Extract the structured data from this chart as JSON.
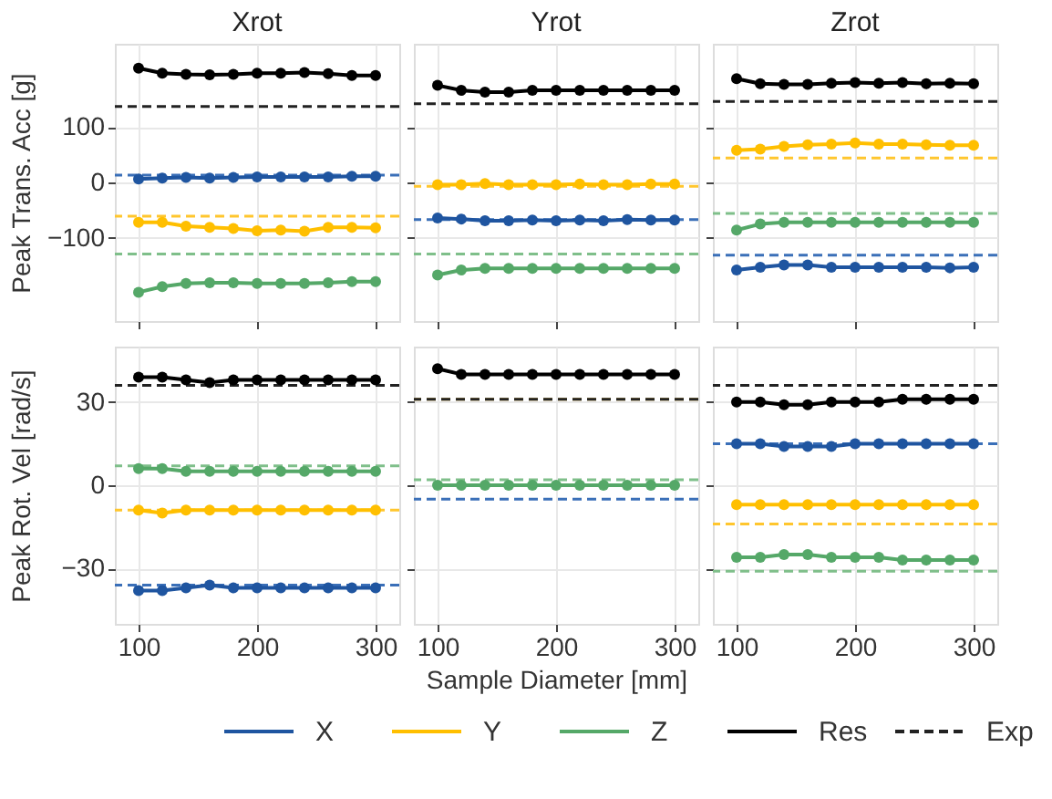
{
  "chart_data": [
    {
      "type": "line",
      "title": "Xrot",
      "ylabel": "Peak Trans. Acc [g]",
      "x": [
        100,
        120,
        140,
        160,
        180,
        200,
        220,
        240,
        260,
        280,
        300
      ],
      "xlim": [
        80,
        320
      ],
      "xticks": [
        100,
        200,
        300
      ],
      "ylim": [
        -250,
        250
      ],
      "yticks": [
        -100,
        0,
        100
      ],
      "grid": true,
      "marker": "circle",
      "line_style": "solid",
      "tick_labels": "y",
      "legend": "bottom",
      "series": [
        {
          "name": "X",
          "color": "#1f55a0",
          "values": [
            6,
            8,
            9,
            8,
            9,
            10,
            10,
            10,
            10,
            11,
            11
          ]
        },
        {
          "name": "Y",
          "color": "#ffbf00",
          "values": [
            -72,
            -72,
            -79,
            -81,
            -83,
            -87,
            -86,
            -88,
            -81,
            -81,
            -82
          ]
        },
        {
          "name": "Z",
          "color": "#55a868",
          "values": [
            -198,
            -188,
            -182,
            -181,
            -181,
            -182,
            -182,
            -182,
            -181,
            -179,
            -179
          ]
        },
        {
          "name": "Res",
          "color": "#000000",
          "values": [
            206,
            197,
            195,
            194,
            195,
            197,
            197,
            198,
            196,
            193,
            193
          ]
        }
      ],
      "ref_lines": [
        {
          "axis": "y",
          "value": 13,
          "color": "#3a6fb8",
          "line_style": "dashed"
        },
        {
          "axis": "y",
          "value": -61,
          "color": "#ffc62e",
          "line_style": "dashed"
        },
        {
          "axis": "y",
          "value": -129,
          "color": "#7fbf8a",
          "line_style": "dashed"
        },
        {
          "axis": "y",
          "value": 137,
          "label": "Exp",
          "color": "#222222",
          "line_style": "dashed"
        }
      ]
    },
    {
      "type": "line",
      "title": "Yrot",
      "x": [
        100,
        120,
        140,
        160,
        180,
        200,
        220,
        240,
        260,
        280,
        300
      ],
      "xlim": [
        80,
        320
      ],
      "xticks": [
        100,
        200,
        300
      ],
      "ylim": [
        -250,
        250
      ],
      "yticks": [
        -100,
        0,
        100
      ],
      "grid": true,
      "marker": "circle",
      "line_style": "solid",
      "tick_labels": false,
      "series": [
        {
          "name": "X",
          "color": "#1f55a0",
          "values": [
            -64,
            -66,
            -69,
            -69,
            -68,
            -69,
            -68,
            -69,
            -67,
            -68,
            -68
          ]
        },
        {
          "name": "Y",
          "color": "#ffbf00",
          "values": [
            -4,
            -4,
            -2,
            -4,
            -4,
            -4,
            -3,
            -4,
            -4,
            -3,
            -3
          ]
        },
        {
          "name": "Z",
          "color": "#55a868",
          "values": [
            -167,
            -158,
            -155,
            -155,
            -155,
            -155,
            -155,
            -155,
            -155,
            -155,
            -155
          ]
        },
        {
          "name": "Res",
          "color": "#000000",
          "values": [
            175,
            166,
            163,
            163,
            166,
            166,
            166,
            166,
            166,
            166,
            166
          ]
        }
      ],
      "ref_lines": [
        {
          "axis": "y",
          "value": -67,
          "color": "#3a6fb8",
          "line_style": "dashed"
        },
        {
          "axis": "y",
          "value": -7,
          "color": "#ffc62e",
          "line_style": "dashed"
        },
        {
          "axis": "y",
          "value": -129,
          "color": "#7fbf8a",
          "line_style": "dashed"
        },
        {
          "axis": "y",
          "value": 142,
          "color": "#222222",
          "line_style": "dashed"
        }
      ]
    },
    {
      "type": "line",
      "title": "Zrot",
      "x": [
        100,
        120,
        140,
        160,
        180,
        200,
        220,
        240,
        260,
        280,
        300
      ],
      "xlim": [
        80,
        320
      ],
      "xticks": [
        100,
        200,
        300
      ],
      "ylim": [
        -250,
        250
      ],
      "yticks": [
        -100,
        0,
        100
      ],
      "grid": true,
      "marker": "circle",
      "line_style": "solid",
      "tick_labels": false,
      "series": [
        {
          "name": "X",
          "color": "#1f55a0",
          "values": [
            -158,
            -153,
            -149,
            -149,
            -153,
            -153,
            -153,
            -153,
            -153,
            -154,
            -153
          ]
        },
        {
          "name": "Y",
          "color": "#ffbf00",
          "values": [
            58,
            60,
            65,
            68,
            69,
            71,
            69,
            69,
            68,
            67,
            67
          ]
        },
        {
          "name": "Z",
          "color": "#55a868",
          "values": [
            -86,
            -75,
            -72,
            -72,
            -72,
            -72,
            -72,
            -72,
            -72,
            -72,
            -72
          ]
        },
        {
          "name": "Res",
          "color": "#000000",
          "values": [
            187,
            178,
            177,
            177,
            179,
            180,
            179,
            180,
            178,
            179,
            178
          ]
        }
      ],
      "ref_lines": [
        {
          "axis": "y",
          "value": -131,
          "color": "#3a6fb8",
          "line_style": "dashed"
        },
        {
          "axis": "y",
          "value": 44,
          "color": "#ffc62e",
          "line_style": "dashed"
        },
        {
          "axis": "y",
          "value": -56,
          "color": "#7fbf8a",
          "line_style": "dashed"
        },
        {
          "axis": "y",
          "value": 146,
          "color": "#222222",
          "line_style": "dashed"
        }
      ]
    },
    {
      "type": "line",
      "ylabel": "Peak Rot. Vel [rad/s]",
      "x": [
        100,
        120,
        140,
        160,
        180,
        200,
        220,
        240,
        260,
        280,
        300
      ],
      "xlim": [
        80,
        320
      ],
      "xticks": [
        100,
        200,
        300
      ],
      "ylim": [
        -50,
        50
      ],
      "yticks": [
        -30,
        0,
        30
      ],
      "grid": true,
      "marker": "circle",
      "line_style": "solid",
      "series": [
        {
          "name": "X",
          "color": "#1f55a0",
          "values": [
            -38,
            -38,
            -37,
            -36,
            -37,
            -37,
            -37,
            -37,
            -37,
            -37,
            -37
          ]
        },
        {
          "name": "Y",
          "color": "#ffbf00",
          "values": [
            -9,
            -10,
            -9,
            -9,
            -9,
            -9,
            -9,
            -9,
            -9,
            -9,
            -9
          ]
        },
        {
          "name": "Z",
          "color": "#55a868",
          "values": [
            6,
            6,
            5,
            5,
            5,
            5,
            5,
            5,
            5,
            5,
            5
          ]
        },
        {
          "name": "Res",
          "color": "#000000",
          "values": [
            39,
            39,
            38,
            37,
            38,
            38,
            38,
            38,
            38,
            38,
            38
          ]
        }
      ],
      "ref_lines": [
        {
          "axis": "y",
          "value": -36,
          "color": "#3a6fb8",
          "line_style": "dashed"
        },
        {
          "axis": "y",
          "value": -9,
          "color": "#ffc62e",
          "line_style": "dashed"
        },
        {
          "axis": "y",
          "value": 7,
          "color": "#7fbf8a",
          "line_style": "dashed"
        },
        {
          "axis": "y",
          "value": 36,
          "color": "#222222",
          "line_style": "dashed"
        }
      ]
    },
    {
      "type": "line",
      "xlabel": "Sample Diameter [mm]",
      "x": [
        100,
        120,
        140,
        160,
        180,
        200,
        220,
        240,
        260,
        280,
        300
      ],
      "xlim": [
        80,
        320
      ],
      "xticks": [
        100,
        200,
        300
      ],
      "ylim": [
        -50,
        50
      ],
      "yticks": [
        -30,
        0,
        30
      ],
      "grid": true,
      "marker": "circle",
      "line_style": "solid",
      "tick_labels": "x",
      "series": [
        {
          "name": "Z",
          "color": "#55a868",
          "values": [
            0,
            0,
            0,
            0,
            0,
            0,
            0,
            0,
            0,
            0,
            0
          ]
        },
        {
          "name": "Res",
          "color": "#000000",
          "values": [
            42,
            40,
            40,
            40,
            40,
            40,
            40,
            40,
            40,
            40,
            40
          ]
        }
      ],
      "ref_lines": [
        {
          "axis": "y",
          "value": -5,
          "color": "#3a6fb8",
          "line_style": "dashed"
        },
        {
          "axis": "y",
          "value": 31,
          "color": "#ffc62e",
          "line_style": "dashed"
        },
        {
          "axis": "y",
          "value": 2,
          "color": "#7fbf8a",
          "line_style": "dashed"
        },
        {
          "axis": "y",
          "value": 31,
          "color": "#222222",
          "line_style": "dashed"
        }
      ]
    },
    {
      "type": "line",
      "x": [
        100,
        120,
        140,
        160,
        180,
        200,
        220,
        240,
        260,
        280,
        300
      ],
      "xlim": [
        80,
        320
      ],
      "xticks": [
        100,
        200,
        300
      ],
      "ylim": [
        -50,
        50
      ],
      "yticks": [
        -30,
        0,
        30
      ],
      "grid": true,
      "marker": "circle",
      "line_style": "solid",
      "tick_labels": "x",
      "series": [
        {
          "name": "X",
          "color": "#1f55a0",
          "values": [
            15,
            15,
            14,
            14,
            14,
            15,
            15,
            15,
            15,
            15,
            15
          ]
        },
        {
          "name": "Y",
          "color": "#ffbf00",
          "values": [
            -7,
            -7,
            -7,
            -7,
            -7,
            -7,
            -7,
            -7,
            -7,
            -7,
            -7
          ]
        },
        {
          "name": "Z",
          "color": "#55a868",
          "values": [
            -26,
            -26,
            -25,
            -25,
            -26,
            -26,
            -26,
            -27,
            -27,
            -27,
            -27
          ]
        },
        {
          "name": "Res",
          "color": "#000000",
          "values": [
            30,
            30,
            29,
            29,
            30,
            30,
            30,
            31,
            31,
            31,
            31
          ]
        }
      ],
      "ref_lines": [
        {
          "axis": "y",
          "value": 15,
          "color": "#3a6fb8",
          "line_style": "dashed"
        },
        {
          "axis": "y",
          "value": -14,
          "color": "#ffc62e",
          "line_style": "dashed"
        },
        {
          "axis": "y",
          "value": -31,
          "color": "#7fbf8a",
          "line_style": "dashed"
        },
        {
          "axis": "y",
          "value": 36,
          "color": "#222222",
          "line_style": "dashed"
        }
      ]
    }
  ]
}
